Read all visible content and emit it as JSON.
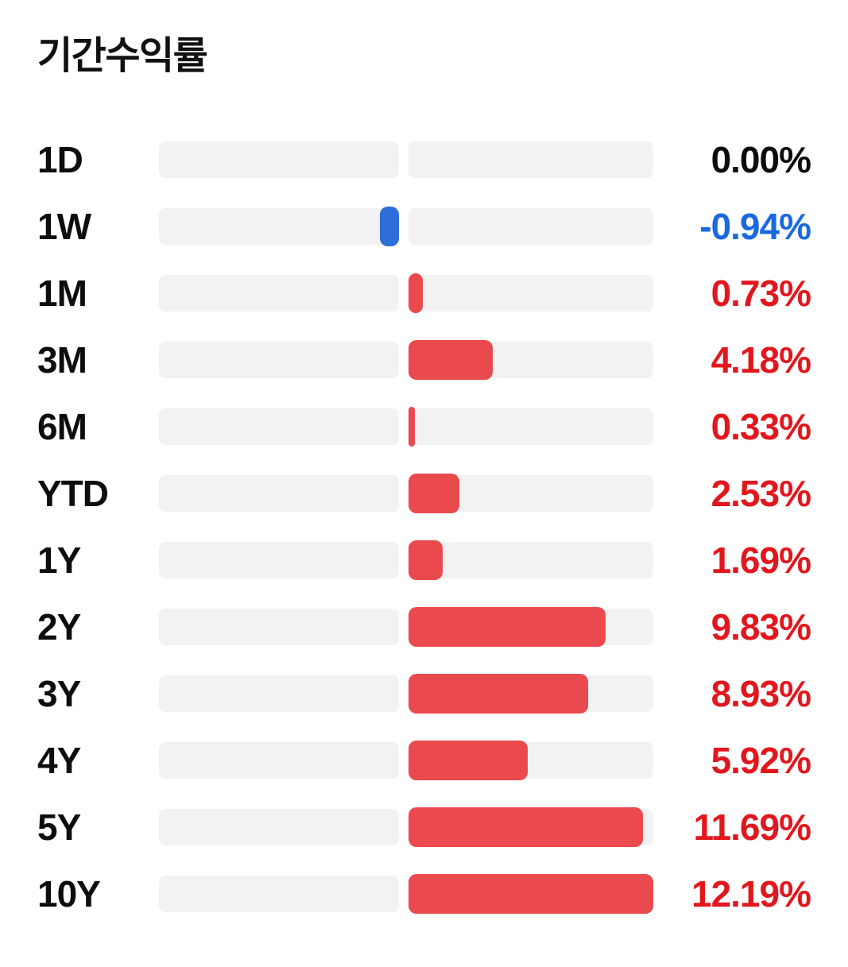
{
  "colors": {
    "bar_positive": "#ea4a4d",
    "bar_negative": "#2d6ed8",
    "track": "#f2f2f2",
    "value_text_positive": "#e2171d",
    "value_text_negative": "#1a69e0",
    "value_text_zero": "#0d0d0d",
    "label_text": "#0d0d0d",
    "title_text": "#111111"
  },
  "chart_data": {
    "type": "bar",
    "orientation": "horizontal-diverging",
    "title": "기간수익률",
    "categories": [
      "1D",
      "1W",
      "1M",
      "3M",
      "6M",
      "YTD",
      "1Y",
      "2Y",
      "3Y",
      "4Y",
      "5Y",
      "10Y"
    ],
    "values": [
      0.0,
      -0.94,
      0.73,
      4.18,
      0.33,
      2.53,
      1.69,
      9.83,
      8.93,
      5.92,
      11.69,
      12.19
    ],
    "value_labels": [
      "0.00%",
      "-0.94%",
      "0.73%",
      "4.18%",
      "0.33%",
      "2.53%",
      "1.69%",
      "9.83%",
      "8.93%",
      "5.92%",
      "11.69%",
      "12.19%"
    ],
    "axis_max_abs": 12.19,
    "baseline": "center",
    "grid": false,
    "legend": "none"
  }
}
